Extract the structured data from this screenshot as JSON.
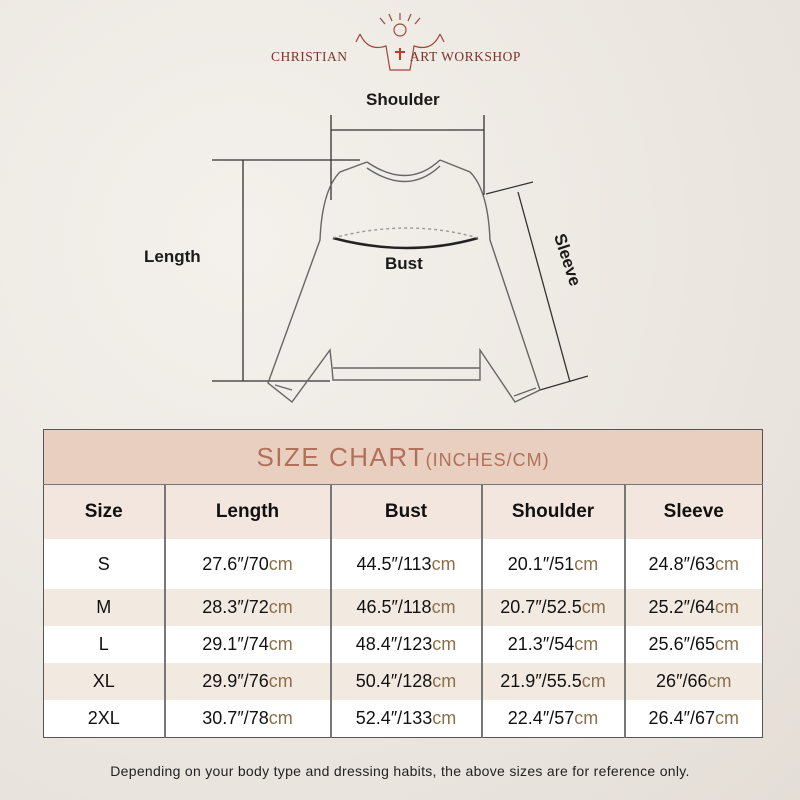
{
  "brand": {
    "left": "CHRISTIAN",
    "right": "ART WORKSHOP"
  },
  "diagram": {
    "shoulder": "Shoulder",
    "length": "Length",
    "bust": "Bust",
    "sleeve": "Sleeve"
  },
  "table": {
    "title": "SIZE CHART",
    "title_sub": "(INCHES/CM)",
    "headers": [
      "Size",
      "Length",
      "Bust",
      "Shoulder",
      "Sleeve"
    ],
    "inch_mark": "″/",
    "cm_unit": "cm",
    "rows": [
      {
        "size": "S",
        "values": [
          [
            "27.6",
            "70"
          ],
          [
            "44.5",
            "113"
          ],
          [
            "20.1",
            "51"
          ],
          [
            "24.8",
            "63"
          ]
        ]
      },
      {
        "size": "M",
        "values": [
          [
            "28.3",
            "72"
          ],
          [
            "46.5",
            "118"
          ],
          [
            "20.7",
            "52.5"
          ],
          [
            "25.2",
            "64"
          ]
        ]
      },
      {
        "size": "L",
        "values": [
          [
            "29.1",
            "74"
          ],
          [
            "48.4",
            "123"
          ],
          [
            "21.3",
            "54"
          ],
          [
            "25.6",
            "65"
          ]
        ]
      },
      {
        "size": "XL",
        "values": [
          [
            "29.9",
            "76"
          ],
          [
            "50.4",
            "128"
          ],
          [
            "21.9",
            "55.5"
          ],
          [
            "26",
            "66"
          ]
        ]
      },
      {
        "size": "2XL",
        "values": [
          [
            "30.7",
            "78"
          ],
          [
            "52.4",
            "133"
          ],
          [
            "22.4",
            "57"
          ],
          [
            "26.4",
            "67"
          ]
        ]
      }
    ]
  },
  "note": "Depending on your body type and dressing habits, the above sizes are for reference only.",
  "colors": {
    "title_band": "#e8cfc0",
    "title_text": "#b0705a",
    "cm_text": "#8b6f4a",
    "brand": "#7a3528"
  }
}
